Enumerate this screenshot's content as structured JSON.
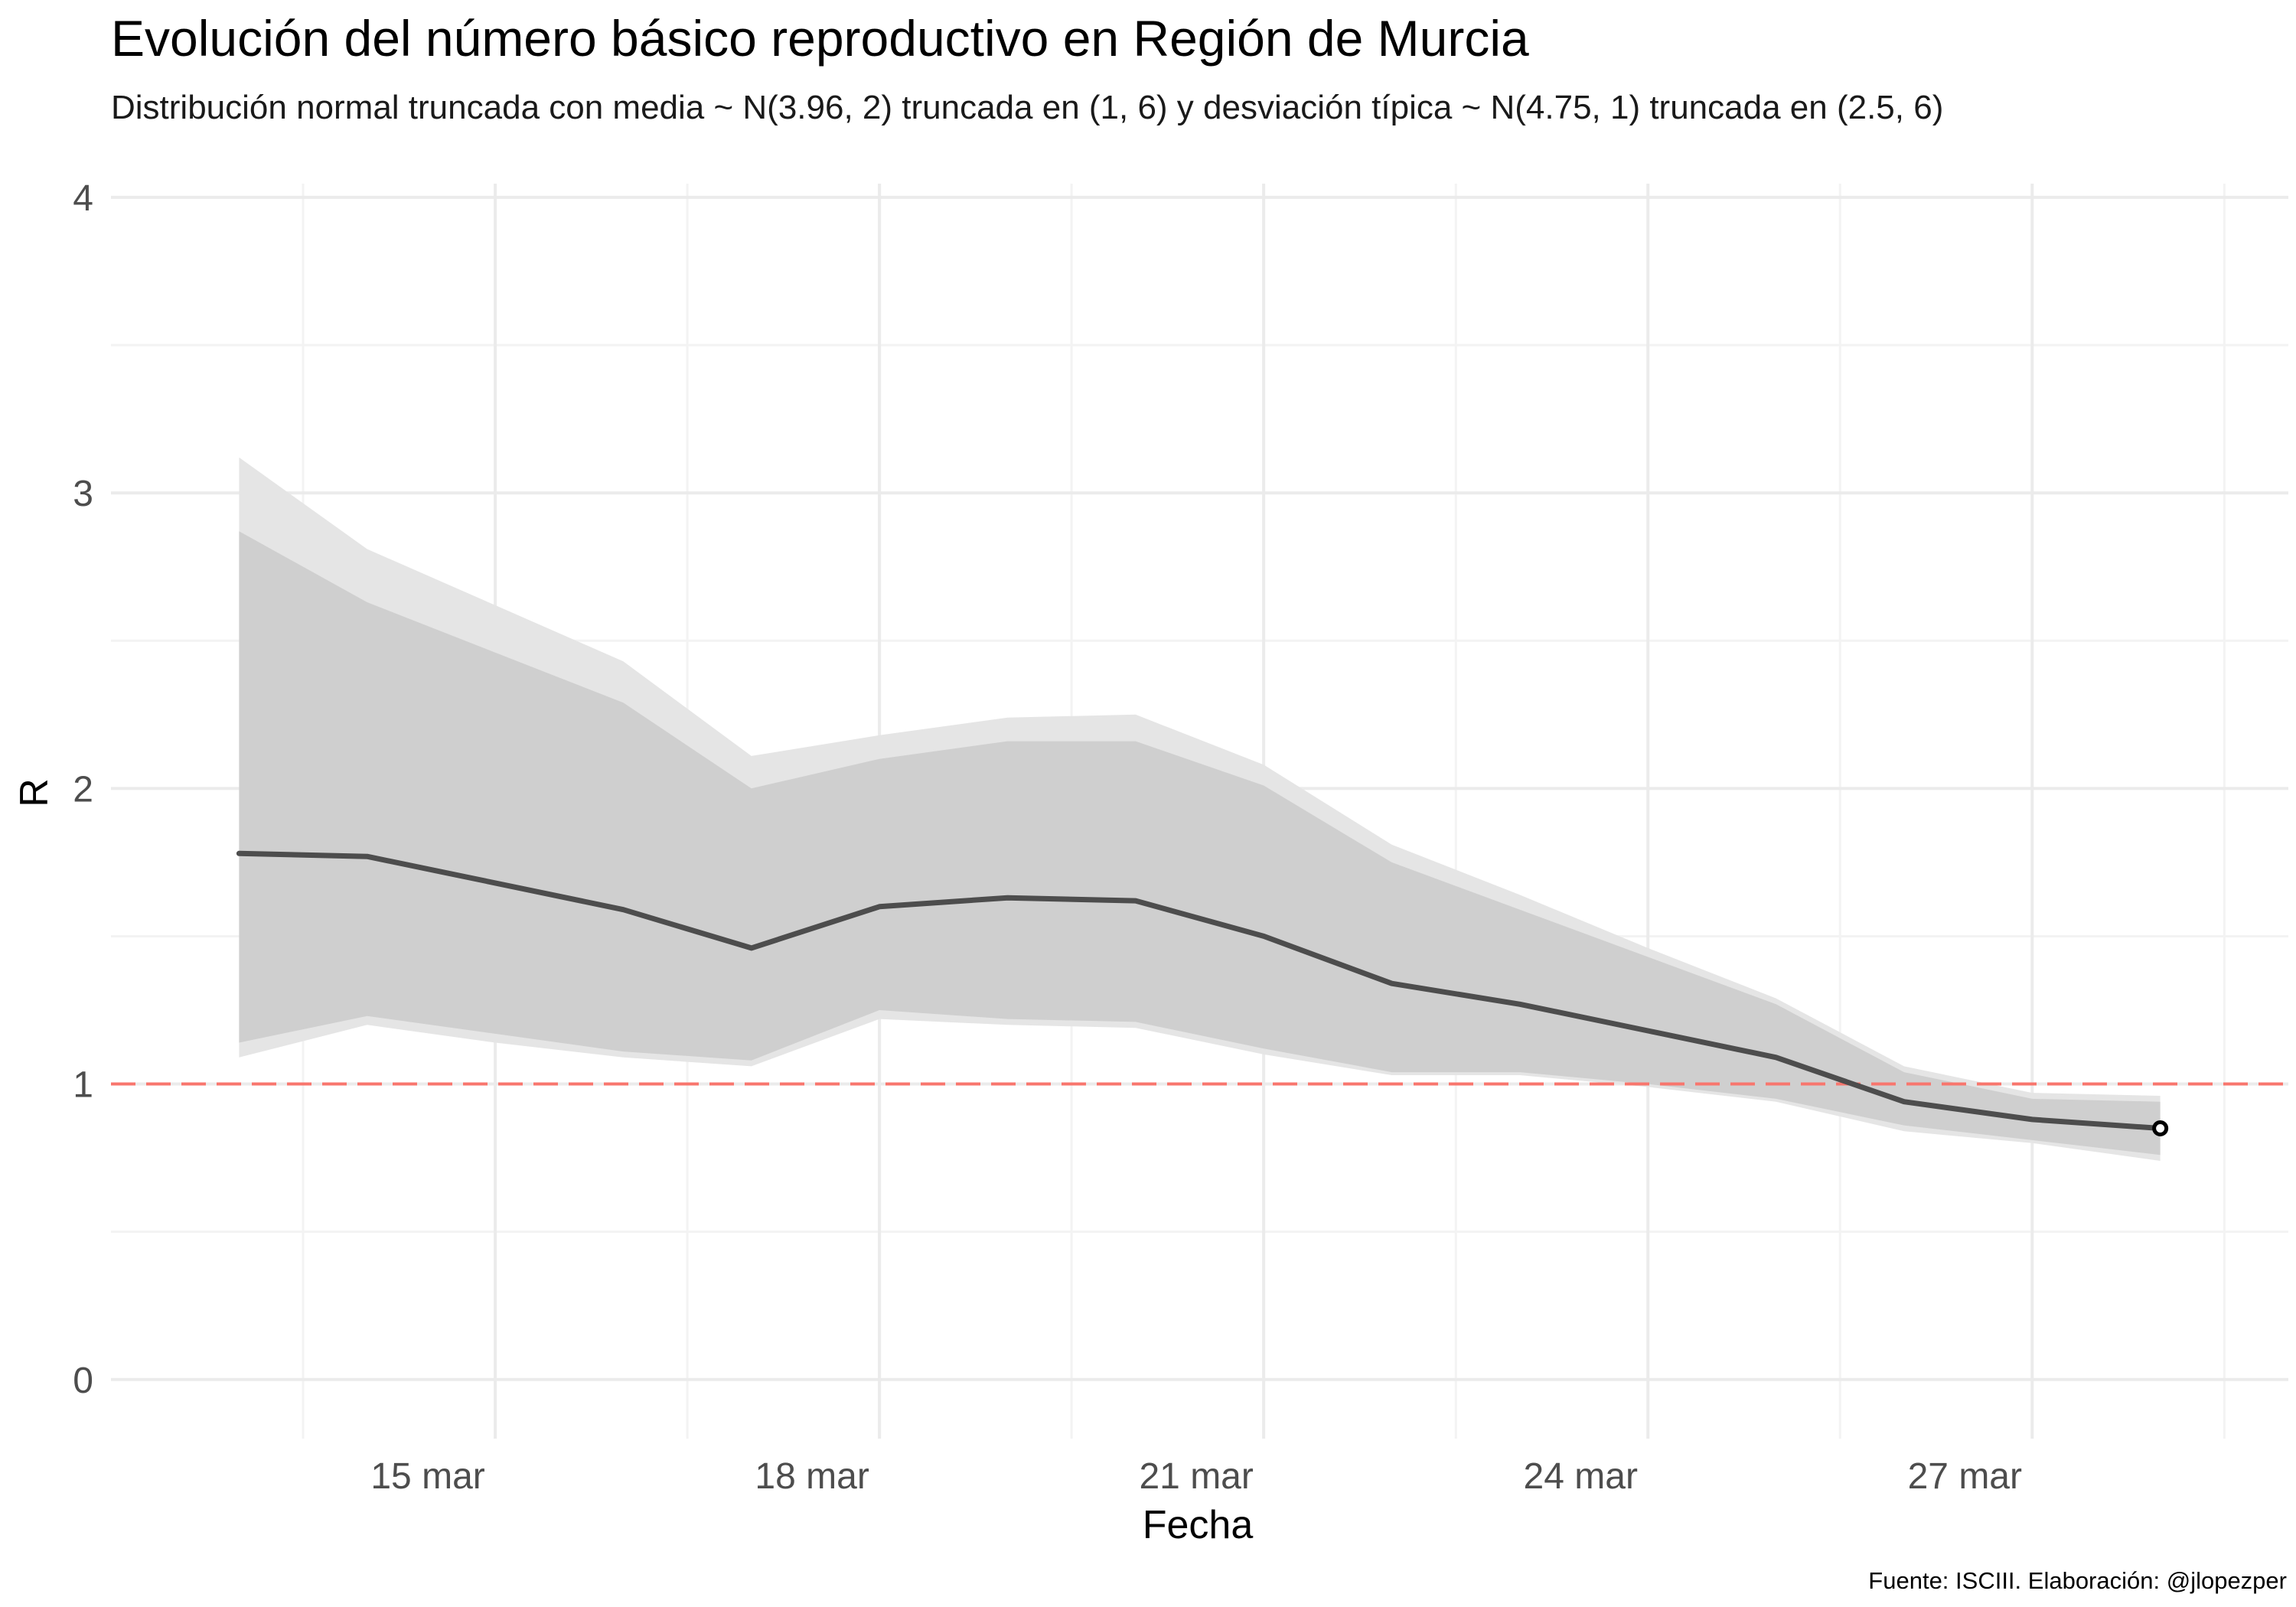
{
  "chart_data": {
    "type": "line",
    "title": "Evolución del número básico reproductivo en Región de Murcia",
    "subtitle": "Distribución normal truncada con media ~ N(3.96, 2) truncada en (1, 6) y desviación típica ~ N(4.75, 1) truncada en (2.5, 6)",
    "xlabel": "Fecha",
    "ylabel": "R",
    "caption": "Fuente: ISCIII. Elaboración: @jlopezper",
    "x": [
      "2020-03-13",
      "2020-03-14",
      "2020-03-15",
      "2020-03-16",
      "2020-03-17",
      "2020-03-18",
      "2020-03-19",
      "2020-03-20",
      "2020-03-21",
      "2020-03-22",
      "2020-03-23",
      "2020-03-24",
      "2020-03-25",
      "2020-03-26",
      "2020-03-27",
      "2020-03-28"
    ],
    "x_ticks": [
      {
        "date": "2020-03-15",
        "label": "15 mar"
      },
      {
        "date": "2020-03-18",
        "label": "18 mar"
      },
      {
        "date": "2020-03-21",
        "label": "21 mar"
      },
      {
        "date": "2020-03-24",
        "label": "24 mar"
      },
      {
        "date": "2020-03-27",
        "label": "27 mar"
      }
    ],
    "y_ticks": [
      0,
      1,
      2,
      3,
      4
    ],
    "ylim": [
      -0.2,
      4.15
    ],
    "xlim": [
      "2020-03-12",
      "2020-03-29"
    ],
    "grid": true,
    "series": [
      {
        "role": "median",
        "values": [
          1.78,
          1.77,
          1.68,
          1.59,
          1.46,
          1.6,
          1.63,
          1.62,
          1.5,
          1.34,
          1.27,
          1.18,
          1.09,
          0.94,
          0.88,
          0.85
        ]
      },
      {
        "role": "inner_band",
        "upper": [
          2.87,
          2.63,
          2.46,
          2.29,
          2.0,
          2.1,
          2.16,
          2.16,
          2.01,
          1.75,
          1.59,
          1.43,
          1.27,
          1.04,
          0.95,
          0.94
        ],
        "lower": [
          1.14,
          1.23,
          1.17,
          1.11,
          1.08,
          1.25,
          1.22,
          1.21,
          1.12,
          1.04,
          1.04,
          1.0,
          0.95,
          0.86,
          0.81,
          0.76
        ]
      },
      {
        "role": "outer_band",
        "upper": [
          3.12,
          2.81,
          2.62,
          2.43,
          2.11,
          2.18,
          2.24,
          2.25,
          2.08,
          1.81,
          1.64,
          1.46,
          1.29,
          1.06,
          0.97,
          0.96
        ],
        "lower": [
          1.09,
          1.2,
          1.14,
          1.09,
          1.06,
          1.22,
          1.2,
          1.19,
          1.1,
          1.03,
          1.03,
          0.99,
          0.94,
          0.84,
          0.8,
          0.74
        ]
      }
    ],
    "reference_line": {
      "y": 1,
      "style": "dashed",
      "color": "#f8766d"
    },
    "colors": {
      "outer_band": "#e5e5e5",
      "inner_band": "#cfcfcf",
      "line": "#4d4d4d",
      "grid_major": "#ebebeb",
      "grid_minor": "#f3f3f3"
    }
  }
}
